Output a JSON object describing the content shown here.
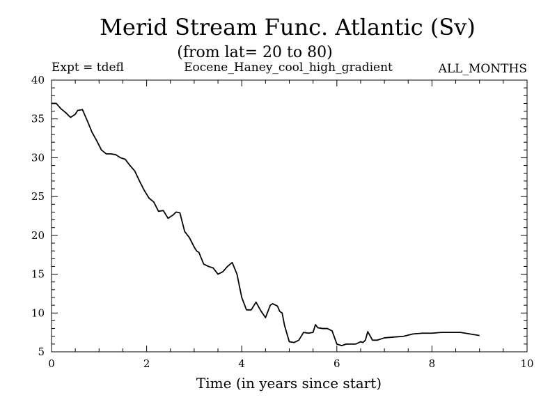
{
  "chart_data": {
    "type": "line",
    "title": "Merid Stream Func. Atlantic (Sv)",
    "subtitle": "(from lat= 20 to 80)",
    "header_left": "Expt = tdefl",
    "header_center": "Eocene_Haney_cool_high_gradient",
    "header_right": "ALL_MONTHS",
    "xlabel": "Time (in years since start)",
    "ylabel": "",
    "xlim": [
      0,
      10
    ],
    "ylim": [
      5,
      40
    ],
    "xticks": [
      0,
      2,
      4,
      6,
      8,
      10
    ],
    "yticks": [
      5,
      10,
      15,
      20,
      25,
      30,
      35,
      40
    ],
    "grid": false,
    "line_color": "#000000",
    "series": [
      {
        "x": [
          0.0,
          0.1,
          0.2,
          0.3,
          0.4,
          0.5,
          0.55,
          0.65,
          0.75,
          0.85,
          0.95,
          1.05,
          1.15,
          1.25,
          1.35,
          1.45,
          1.55,
          1.65,
          1.75,
          1.85,
          1.95,
          2.05,
          2.15,
          2.25,
          2.35,
          2.45,
          2.55,
          2.62,
          2.7,
          2.8,
          2.9,
          3.0,
          3.05,
          3.1,
          3.2,
          3.3,
          3.4,
          3.5,
          3.6,
          3.7,
          3.8,
          3.9,
          4.0,
          4.1,
          4.2,
          4.3,
          4.4,
          4.5,
          4.6,
          4.65,
          4.75,
          4.8,
          4.85,
          4.9,
          5.0,
          5.1,
          5.2,
          5.3,
          5.4,
          5.5,
          5.55,
          5.6,
          5.7,
          5.8,
          5.9,
          6.0,
          6.1,
          6.2,
          6.3,
          6.4,
          6.5,
          6.55,
          6.6,
          6.65,
          6.75,
          6.85,
          7.0,
          7.2,
          7.4,
          7.6,
          7.8,
          8.0,
          8.2,
          8.4,
          8.6,
          8.8,
          9.0
        ],
        "y": [
          37.0,
          37.0,
          36.3,
          35.8,
          35.2,
          35.6,
          36.1,
          36.2,
          34.8,
          33.3,
          32.2,
          31.0,
          30.5,
          30.5,
          30.4,
          30.0,
          29.8,
          29.0,
          28.3,
          27.0,
          25.8,
          24.8,
          24.3,
          23.1,
          23.2,
          22.2,
          22.6,
          23.0,
          22.9,
          20.5,
          19.7,
          18.5,
          18.0,
          17.8,
          16.3,
          16.0,
          15.8,
          15.0,
          15.3,
          16.0,
          16.5,
          15.0,
          12.0,
          10.4,
          10.4,
          11.4,
          10.3,
          9.4,
          11.0,
          11.2,
          10.9,
          10.2,
          10.0,
          8.4,
          6.3,
          6.2,
          6.5,
          7.5,
          7.4,
          7.5,
          8.5,
          8.1,
          8.0,
          8.0,
          7.7,
          6.0,
          5.8,
          6.0,
          6.0,
          6.0,
          6.3,
          6.2,
          6.5,
          7.6,
          6.5,
          6.5,
          6.8,
          6.9,
          7.0,
          7.3,
          7.4,
          7.4,
          7.5,
          7.5,
          7.5,
          7.3,
          7.1
        ]
      }
    ]
  }
}
